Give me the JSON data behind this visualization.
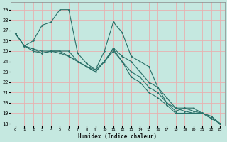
{
  "xlabel": "Humidex (Indice chaleur)",
  "bg_color": "#c5e8e0",
  "grid_color": "#e8b0b0",
  "line_color": "#2a7068",
  "xlim": [
    -0.5,
    23.5
  ],
  "ylim": [
    17.8,
    29.7
  ],
  "xticks": [
    0,
    1,
    2,
    3,
    4,
    5,
    6,
    7,
    8,
    9,
    10,
    11,
    12,
    13,
    14,
    15,
    16,
    17,
    18,
    19,
    20,
    21,
    22,
    23
  ],
  "yticks": [
    18,
    19,
    20,
    21,
    22,
    23,
    24,
    25,
    26,
    27,
    28,
    29
  ],
  "series": [
    [
      26.7,
      25.5,
      26.0,
      27.5,
      27.8,
      29.0,
      29.0,
      24.8,
      23.8,
      23.2,
      25.0,
      27.8,
      26.8,
      24.5,
      24.0,
      23.5,
      21.5,
      20.0,
      19.2,
      19.5,
      19.5,
      19.0,
      18.7,
      18.0
    ],
    [
      26.7,
      25.5,
      25.2,
      25.0,
      25.0,
      24.8,
      24.5,
      24.0,
      23.5,
      23.2,
      24.0,
      25.3,
      24.5,
      24.0,
      23.0,
      22.0,
      21.5,
      20.5,
      19.5,
      19.5,
      19.2,
      19.0,
      18.7,
      18.0
    ],
    [
      26.7,
      25.5,
      25.2,
      24.8,
      25.0,
      25.0,
      24.5,
      24.0,
      23.5,
      23.0,
      24.0,
      25.2,
      24.0,
      23.0,
      22.5,
      21.5,
      21.0,
      20.0,
      19.5,
      19.2,
      19.0,
      19.0,
      18.5,
      18.0
    ],
    [
      26.7,
      25.5,
      25.0,
      24.8,
      25.0,
      25.0,
      25.0,
      24.0,
      23.5,
      23.0,
      24.0,
      25.0,
      24.0,
      22.5,
      22.0,
      21.0,
      20.5,
      19.8,
      19.0,
      19.0,
      19.0,
      19.0,
      18.5,
      18.0
    ]
  ]
}
